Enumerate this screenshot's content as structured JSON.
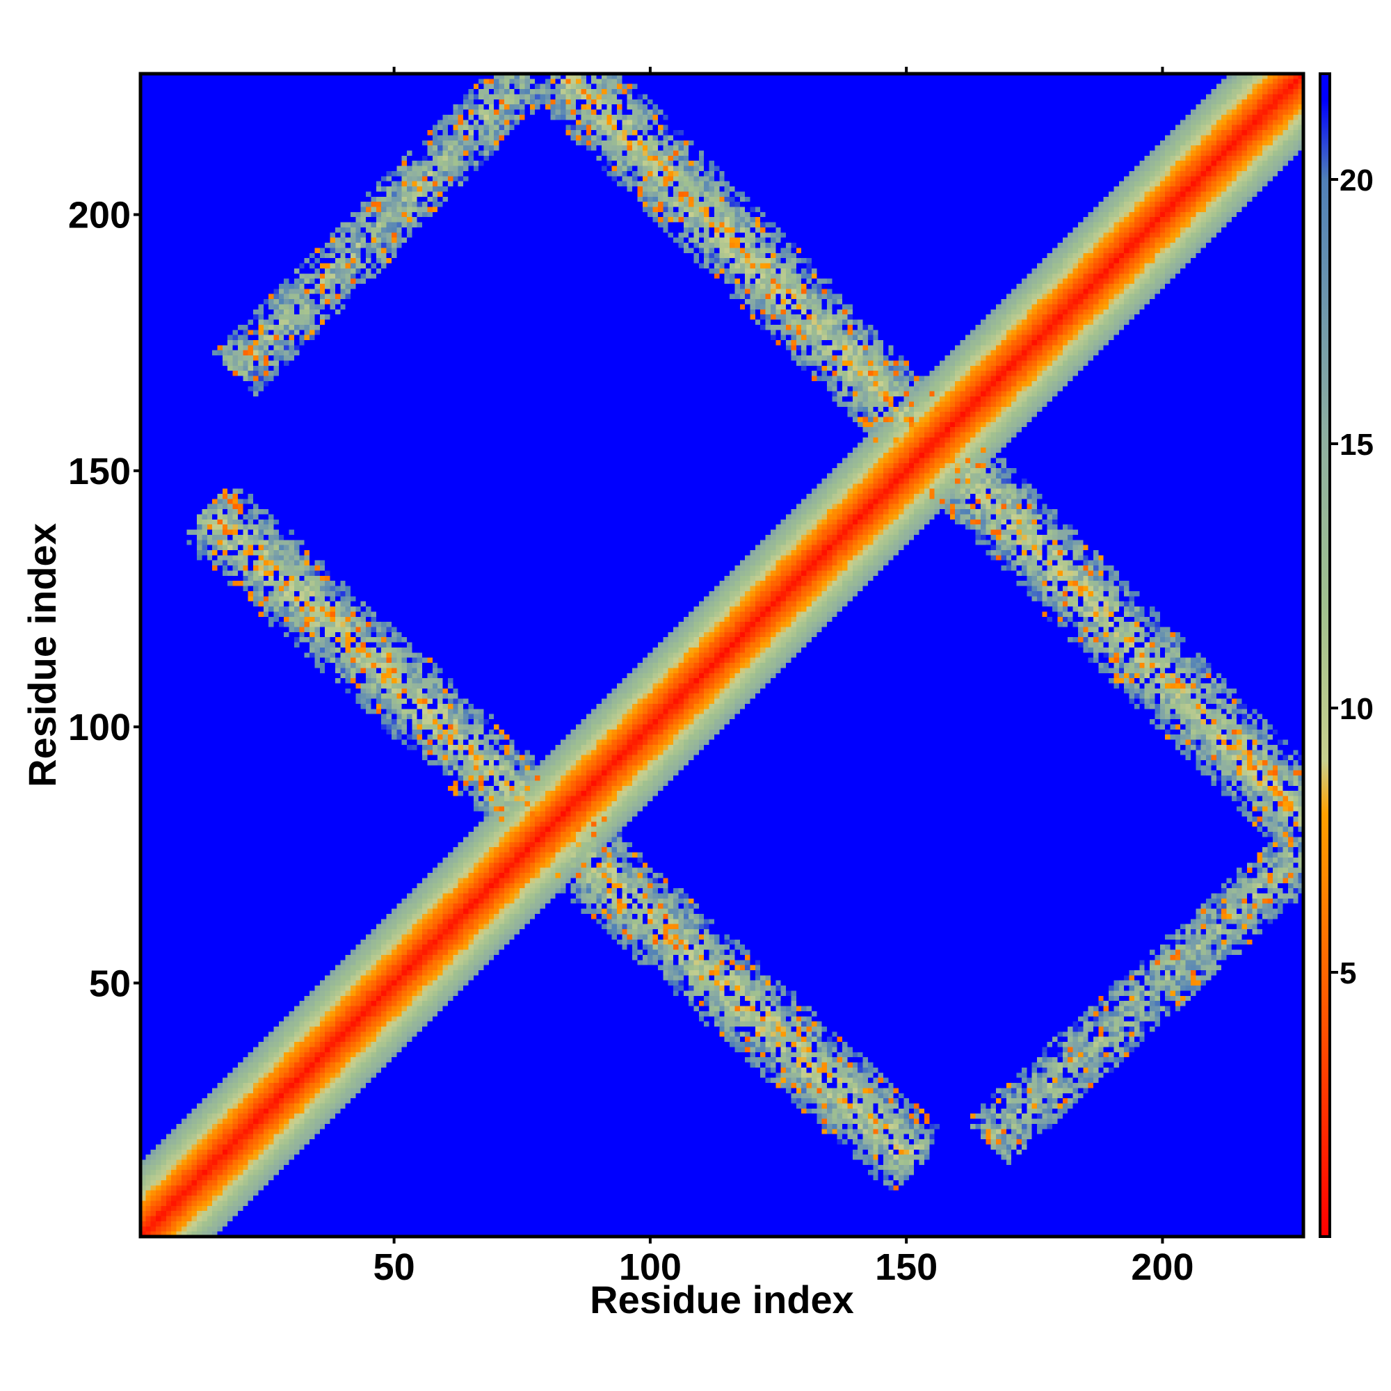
{
  "chart_data": {
    "type": "heatmap",
    "title": "",
    "xlabel": "Residue index",
    "ylabel": "Residue index",
    "xlim": [
      0.5,
      227.5
    ],
    "ylim": [
      0.5,
      227.5
    ],
    "n_residues": 227,
    "x_ticks": [
      50,
      100,
      150,
      200
    ],
    "y_ticks": [
      50,
      100,
      150,
      200
    ],
    "x_tick_labels": [
      "50",
      "100",
      "150",
      "200"
    ],
    "y_tick_labels": [
      "50",
      "100",
      "150",
      "200"
    ],
    "colorbar": {
      "range": [
        0,
        22
      ],
      "ticks": [
        5,
        10,
        15,
        20
      ],
      "tick_labels": [
        "5",
        "10",
        "15",
        "20"
      ],
      "stops": [
        {
          "value": 0,
          "color": "#ff0000"
        },
        {
          "value": 5,
          "color": "#ff6600"
        },
        {
          "value": 8,
          "color": "#ffa000"
        },
        {
          "value": 9,
          "color": "#c8d090"
        },
        {
          "value": 12,
          "color": "#a0c090"
        },
        {
          "value": 15,
          "color": "#90b0a0"
        },
        {
          "value": 20,
          "color": "#5080b8"
        },
        {
          "value": 21.5,
          "color": "#0000ff"
        }
      ]
    },
    "background_color": "#0000ff",
    "features": [
      {
        "name": "main-diagonal",
        "from": [
          1,
          1
        ],
        "to": [
          227,
          227
        ],
        "kind": "diagonal"
      },
      {
        "name": "antiparallel-band-1",
        "from": [
          16,
          140
        ],
        "to": [
          150,
          17
        ],
        "kind": "antidiagonal"
      },
      {
        "name": "antiparallel-band-2",
        "from": [
          85,
          226
        ],
        "to": [
          227,
          83
        ],
        "kind": "antidiagonal"
      },
      {
        "name": "parallel-band-1",
        "from": [
          20,
          170
        ],
        "to": [
          75,
          226
        ],
        "kind": "parallel"
      },
      {
        "name": "parallel-band-2",
        "from": [
          167,
          20
        ],
        "to": [
          227,
          75
        ],
        "kind": "parallel"
      }
    ]
  }
}
